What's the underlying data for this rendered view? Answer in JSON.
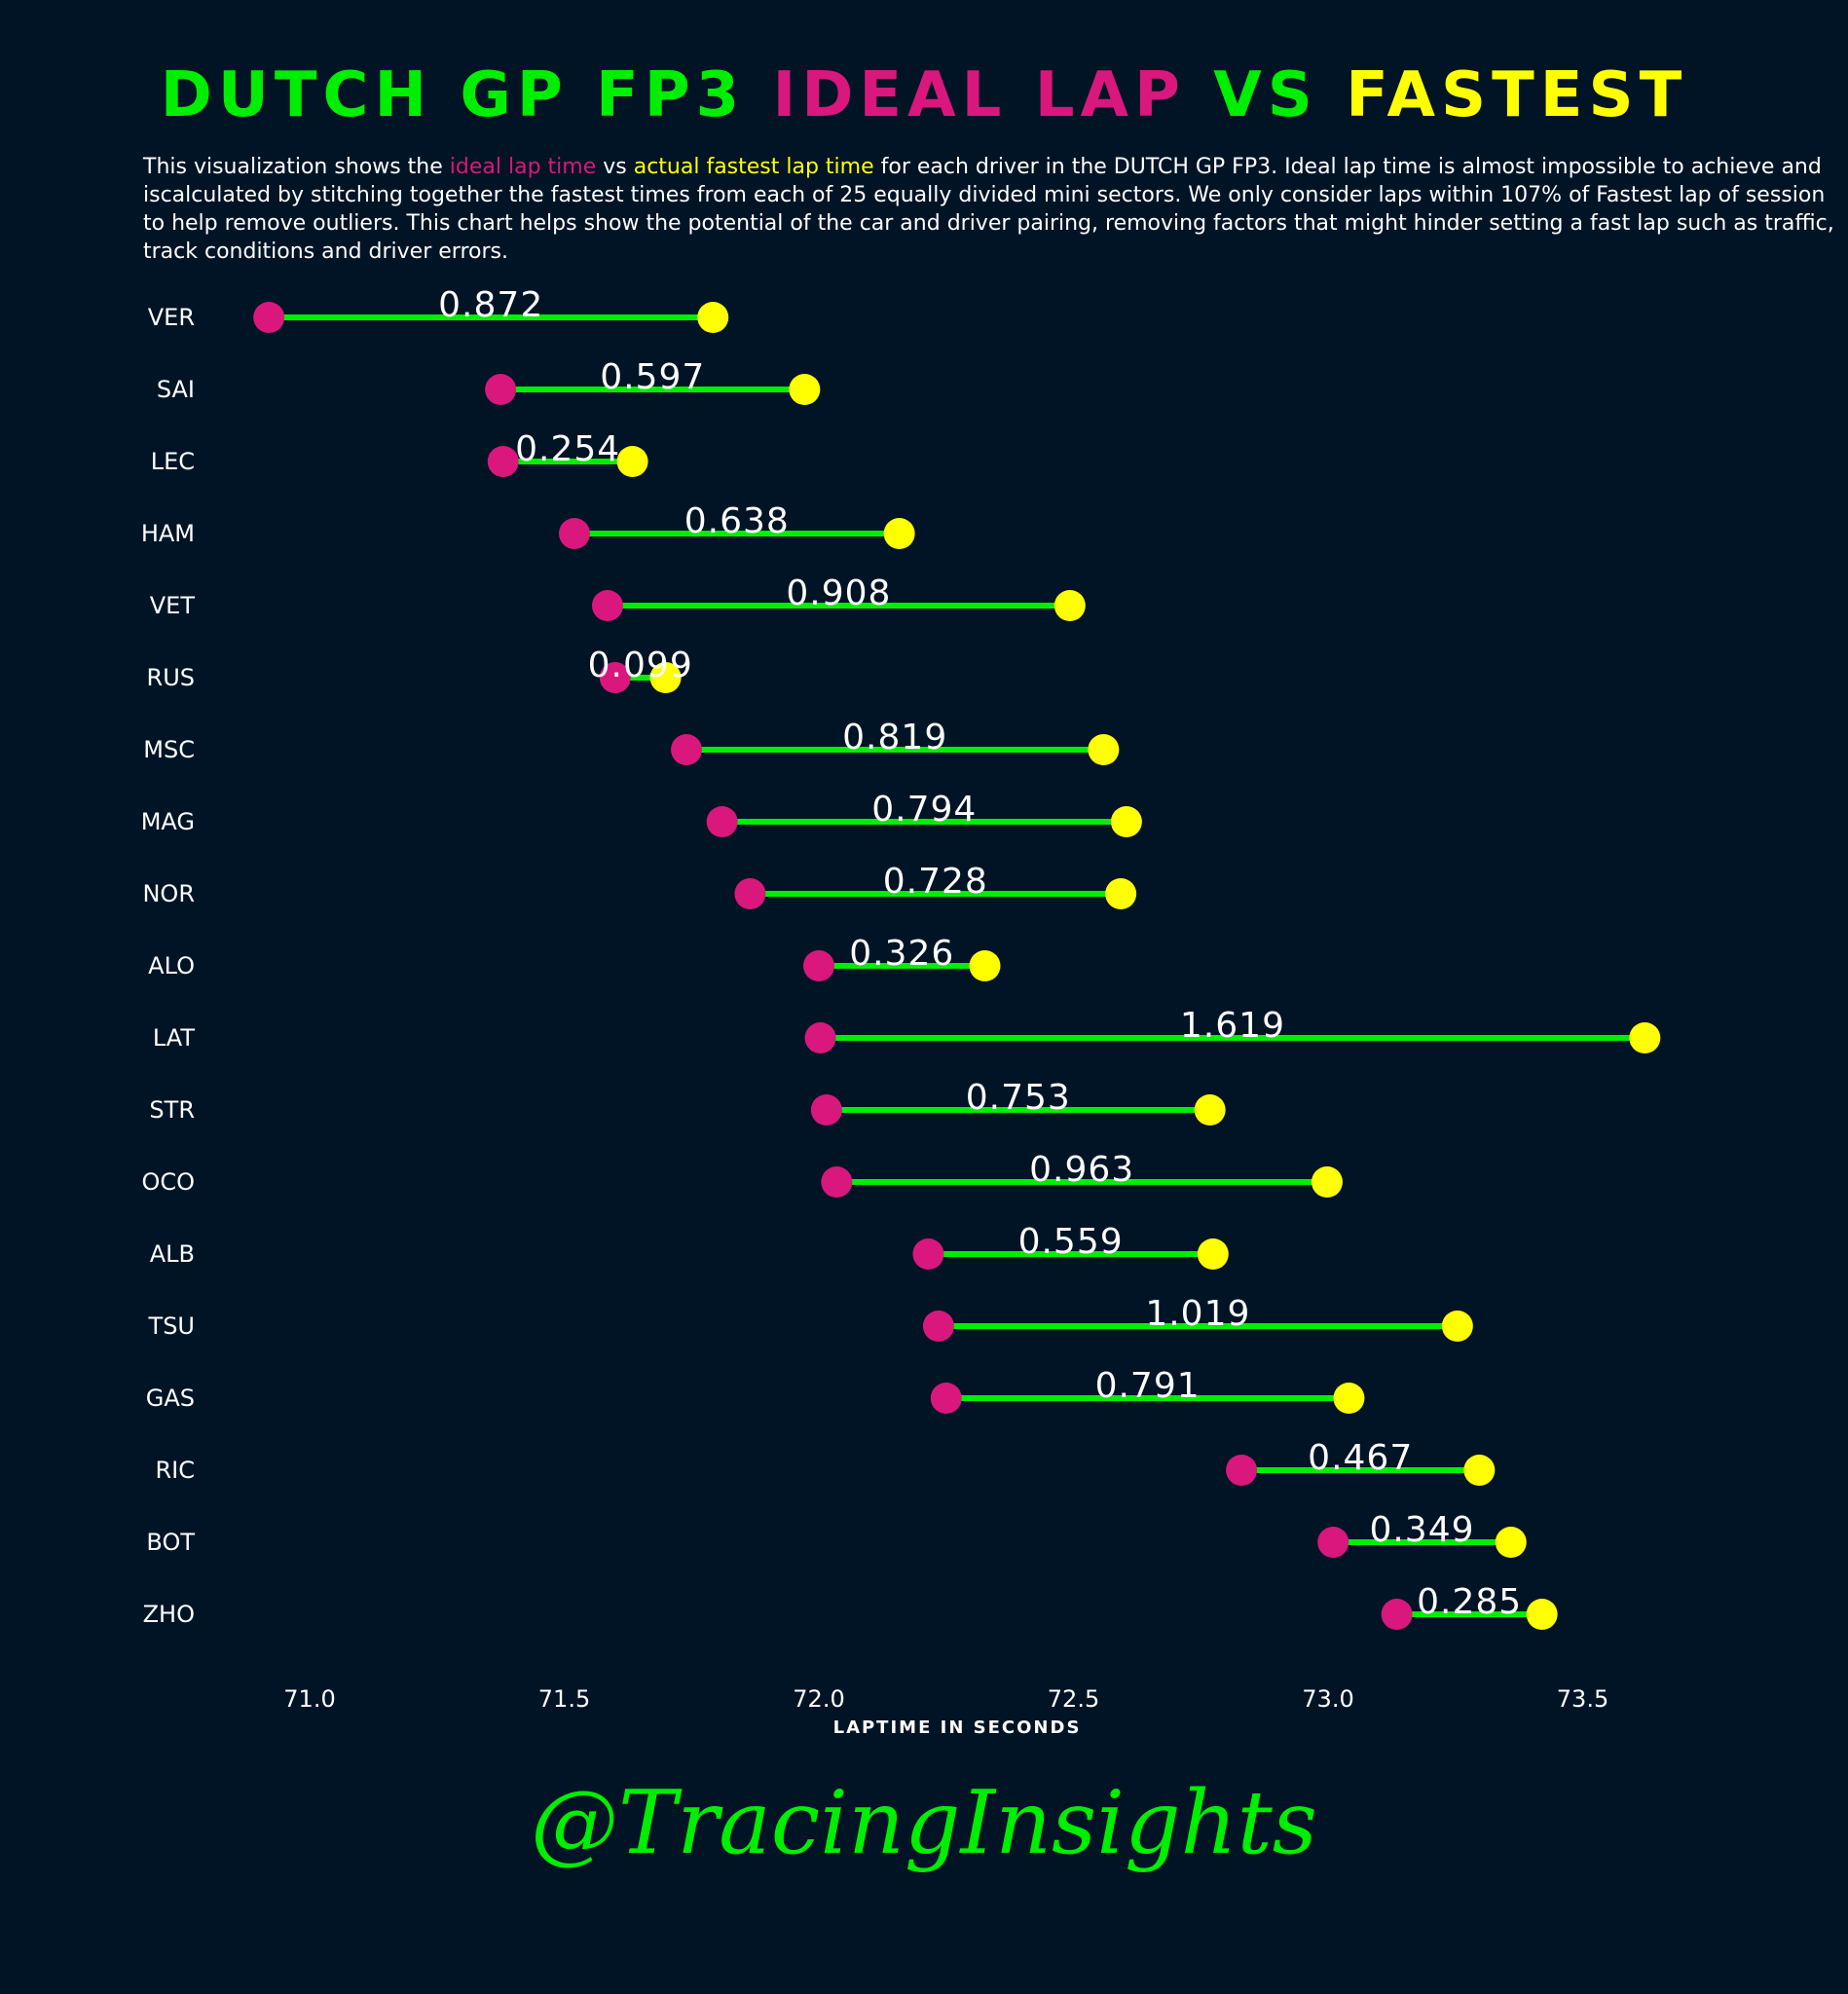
{
  "title": {
    "part1": "DUTCH GP FP3",
    "part2": "IDEAL LAP",
    "part3": "VS",
    "part4": "FASTEST"
  },
  "description": {
    "pre": "This visualization shows the ",
    "ideal": "ideal lap time",
    "mid": " vs ",
    "actual": "actual fastest lap time",
    "post": " for each driver in the DUTCH GP FP3. Ideal lap time is almost impossible to achieve and iscalculated by stitching together the fastest times from each of 25 equally divided mini sectors. We only consider laps within 107% of Fastest lap of session to help remove outliers. This chart helps show the potential of the car and driver pairing, removing factors that might hinder setting a fast lap such as traffic, track conditions and driver errors."
  },
  "colors": {
    "background": "#001426",
    "ideal": "#d9177c",
    "fastest": "#ffff00",
    "line": "#00ee00",
    "title_green": "#00ee00"
  },
  "chart_data": {
    "type": "dumbbell",
    "xlabel": "LAPTIME IN SECONDS",
    "xlim": [
      70.9,
      73.6
    ],
    "xticks": [
      71.0,
      71.5,
      72.0,
      72.5,
      73.0,
      73.5
    ],
    "xtick_labels": [
      "71.0",
      "71.5",
      "72.0",
      "72.5",
      "73.0",
      "73.5"
    ],
    "series": [
      {
        "name": "ideal lap time"
      },
      {
        "name": "actual fastest lap time"
      }
    ],
    "drivers": [
      {
        "driver": "VER",
        "ideal": 70.92,
        "fastest": 71.792,
        "delta": "0.872"
      },
      {
        "driver": "SAI",
        "ideal": 71.375,
        "fastest": 71.972,
        "delta": "0.597"
      },
      {
        "driver": "LEC",
        "ideal": 71.38,
        "fastest": 71.634,
        "delta": "0.254"
      },
      {
        "driver": "HAM",
        "ideal": 71.52,
        "fastest": 72.158,
        "delta": "0.638"
      },
      {
        "driver": "VET",
        "ideal": 71.585,
        "fastest": 72.493,
        "delta": "0.908"
      },
      {
        "driver": "RUS",
        "ideal": 71.6,
        "fastest": 71.699,
        "delta": "0.099"
      },
      {
        "driver": "MSC",
        "ideal": 71.74,
        "fastest": 72.559,
        "delta": "0.819"
      },
      {
        "driver": "MAG",
        "ideal": 71.81,
        "fastest": 72.604,
        "delta": "0.794"
      },
      {
        "driver": "NOR",
        "ideal": 71.865,
        "fastest": 72.593,
        "delta": "0.728"
      },
      {
        "driver": "ALO",
        "ideal": 72.0,
        "fastest": 72.326,
        "delta": "0.326"
      },
      {
        "driver": "LAT",
        "ideal": 72.003,
        "fastest": 73.622,
        "delta": "1.619"
      },
      {
        "driver": "STR",
        "ideal": 72.015,
        "fastest": 72.768,
        "delta": "0.753"
      },
      {
        "driver": "OCO",
        "ideal": 72.035,
        "fastest": 72.998,
        "delta": "0.963"
      },
      {
        "driver": "ALB",
        "ideal": 72.215,
        "fastest": 72.774,
        "delta": "0.559"
      },
      {
        "driver": "TSU",
        "ideal": 72.235,
        "fastest": 73.254,
        "delta": "1.019"
      },
      {
        "driver": "GAS",
        "ideal": 72.25,
        "fastest": 73.041,
        "delta": "0.791"
      },
      {
        "driver": "RIC",
        "ideal": 72.83,
        "fastest": 73.297,
        "delta": "0.467"
      },
      {
        "driver": "BOT",
        "ideal": 73.01,
        "fastest": 73.359,
        "delta": "0.349"
      },
      {
        "driver": "ZHO",
        "ideal": 73.135,
        "fastest": 73.42,
        "delta": "0.285"
      }
    ]
  },
  "signature": "@TracingInsights"
}
